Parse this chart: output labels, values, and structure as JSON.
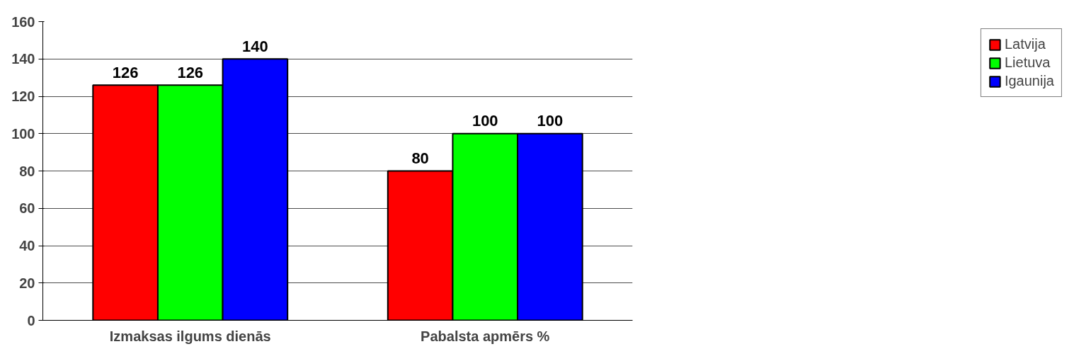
{
  "chart_data": {
    "type": "bar",
    "categories": [
      "Izmaksas ilgums dienās",
      "Pabalsta apmērs %"
    ],
    "series": [
      {
        "name": "Latvija",
        "color": "#ff0000",
        "values": [
          126,
          80
        ]
      },
      {
        "name": "Lietuva",
        "color": "#00ff00",
        "values": [
          126,
          100
        ]
      },
      {
        "name": "Igaunija",
        "color": "#0000ff",
        "values": [
          140,
          100
        ]
      }
    ],
    "ylim": [
      0,
      160
    ],
    "yticks": [
      0,
      20,
      40,
      60,
      80,
      100,
      120,
      140,
      160
    ],
    "grid": "y",
    "legend": "right",
    "data_labels": true
  }
}
